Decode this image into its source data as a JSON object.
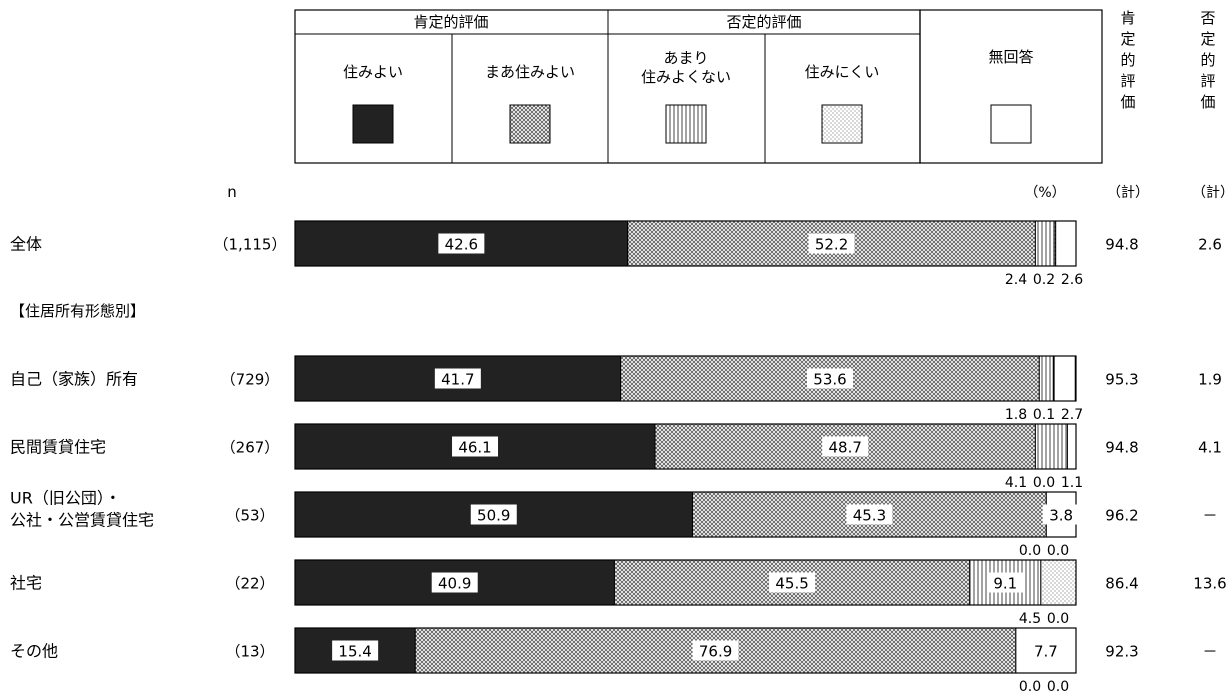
{
  "legend": {
    "group_positive": "肯定的評価",
    "group_negative": "否定的評価",
    "items": [
      {
        "label_lines": [
          "住みよい"
        ],
        "pattern": "solid"
      },
      {
        "label_lines": [
          "まあ住みよい"
        ],
        "pattern": "crosshatch"
      },
      {
        "label_lines": [
          "あまり",
          "住みよくない"
        ],
        "pattern": "vlines"
      },
      {
        "label_lines": [
          "住みにくい"
        ],
        "pattern": "dots"
      },
      {
        "label_lines": [
          "無回答"
        ],
        "pattern": "blank"
      }
    ]
  },
  "headers": {
    "n": "n",
    "percent": "（%）",
    "positive_total_chars": [
      "肯",
      "定",
      "的",
      "評",
      "価"
    ],
    "negative_total_chars": [
      "否",
      "定",
      "的",
      "評",
      "価"
    ],
    "positive_total_sub": "（計）",
    "negative_total_sub": "（計）"
  },
  "section_label": "【住居所有形態別】",
  "colors": {
    "solid": "#222222",
    "border": "#000000",
    "background": "#ffffff"
  },
  "chart_data": {
    "type": "bar",
    "stacked": true,
    "orientation": "horizontal",
    "unit": "%",
    "series_names": [
      "住みよい",
      "まあ住みよい",
      "あまり住みよくない",
      "住みにくい",
      "無回答"
    ],
    "rows": [
      {
        "label_lines": [
          "全体"
        ],
        "n": "（1,115）",
        "values": [
          42.6,
          52.2,
          2.4,
          0.2,
          2.6
        ],
        "inside_labels": [
          "42.6",
          "52.2",
          "",
          "",
          ""
        ],
        "below_labels": [
          "2.4",
          "0.2",
          "2.6"
        ],
        "positive_total": "94.8",
        "negative_total": "2.6"
      },
      {
        "label_lines": [
          "自己（家族）所有"
        ],
        "n": "（729）",
        "values": [
          41.7,
          53.6,
          1.8,
          0.1,
          2.7
        ],
        "inside_labels": [
          "41.7",
          "53.6",
          "",
          "",
          ""
        ],
        "below_labels": [
          "1.8",
          "0.1",
          "2.7"
        ],
        "positive_total": "95.3",
        "negative_total": "1.9"
      },
      {
        "label_lines": [
          "民間賃貸住宅"
        ],
        "n": "（267）",
        "values": [
          46.1,
          48.7,
          4.1,
          0.0,
          1.1
        ],
        "inside_labels": [
          "46.1",
          "48.7",
          "",
          "",
          ""
        ],
        "below_labels": [
          "4.1",
          "0.0",
          "1.1"
        ],
        "positive_total": "94.8",
        "negative_total": "4.1"
      },
      {
        "label_lines": [
          "UR（旧公団）・",
          "公社・公営賃貸住宅"
        ],
        "n": "（53）",
        "values": [
          50.9,
          45.3,
          0.0,
          0.0,
          3.8
        ],
        "inside_labels": [
          "50.9",
          "45.3",
          "",
          "",
          "3.8"
        ],
        "below_labels": [
          "0.0",
          "0.0"
        ],
        "positive_total": "96.2",
        "negative_total": "－"
      },
      {
        "label_lines": [
          "社宅"
        ],
        "n": "（22）",
        "values": [
          40.9,
          45.5,
          9.1,
          4.5,
          0.0
        ],
        "inside_labels": [
          "40.9",
          "45.5",
          "9.1",
          "",
          ""
        ],
        "below_labels": [
          "4.5",
          "0.0"
        ],
        "positive_total": "86.4",
        "negative_total": "13.6"
      },
      {
        "label_lines": [
          "その他"
        ],
        "n": "（13）",
        "values": [
          15.4,
          76.9,
          0.0,
          0.0,
          7.7
        ],
        "inside_labels": [
          "15.4",
          "76.9",
          "",
          "",
          "7.7"
        ],
        "below_labels": [
          "0.0",
          "0.0"
        ],
        "positive_total": "92.3",
        "negative_total": "－"
      }
    ]
  }
}
